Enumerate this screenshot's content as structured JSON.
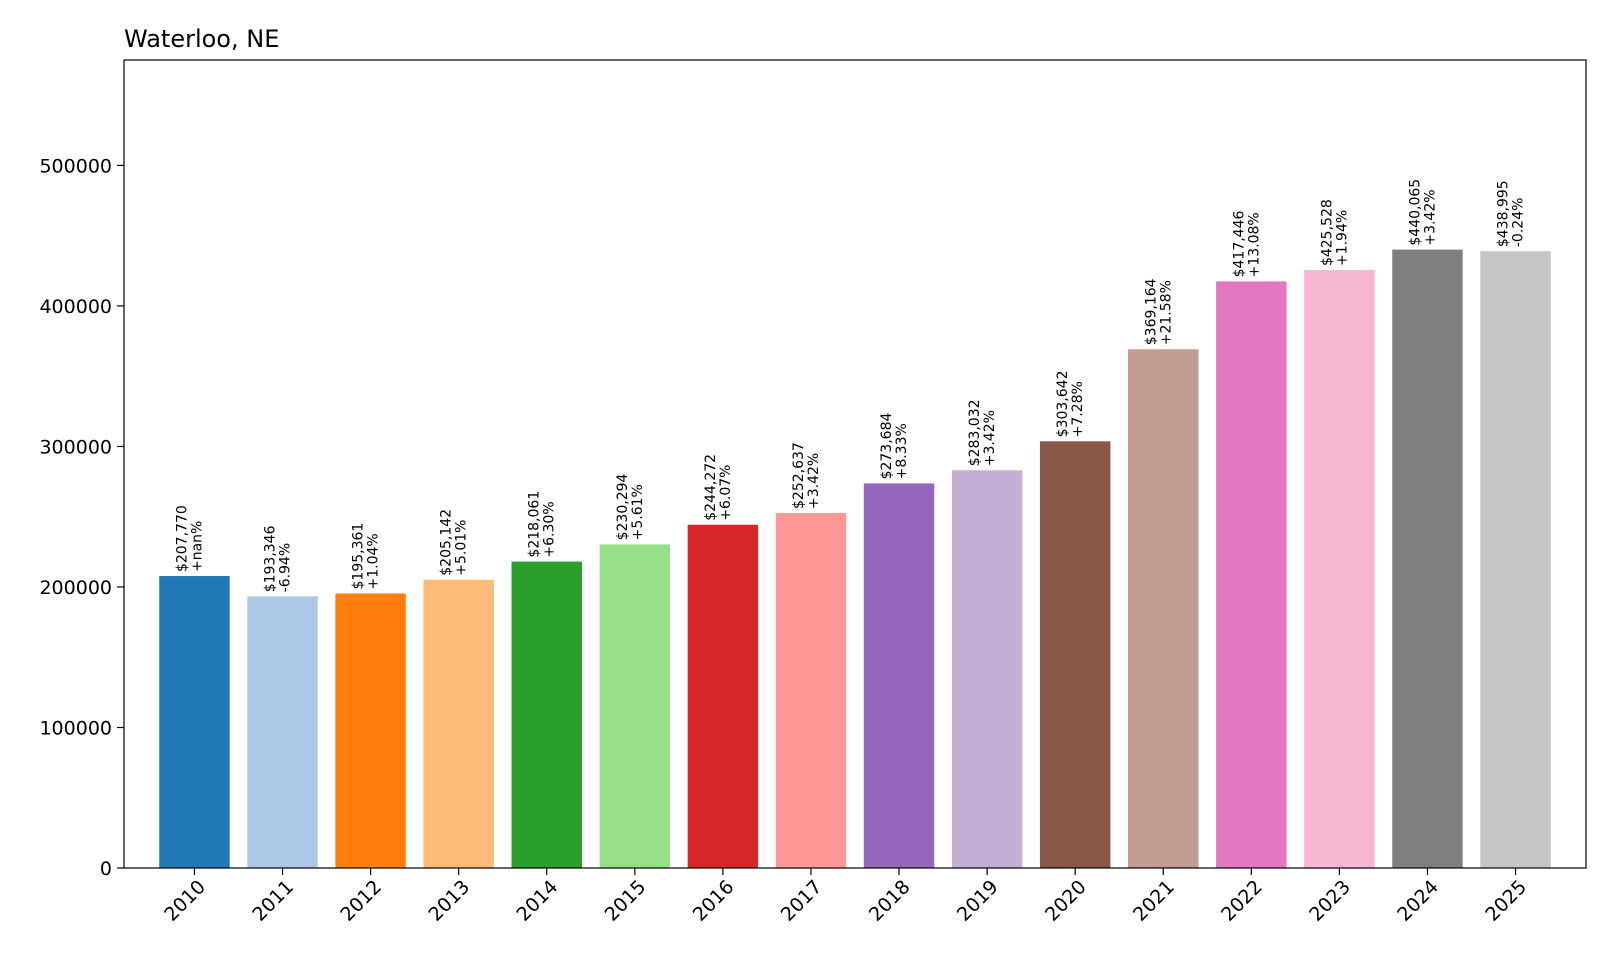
{
  "chart_data": {
    "type": "bar",
    "title": "Waterloo, NE",
    "xlabel": "",
    "ylabel": "",
    "ylim": [
      0,
      575000
    ],
    "yticks": [
      0,
      100000,
      200000,
      300000,
      400000,
      500000
    ],
    "ytick_labels": [
      "0",
      "100000",
      "200000",
      "300000",
      "400000",
      "500000"
    ],
    "grid": false,
    "categories": [
      "2010",
      "2011",
      "2012",
      "2013",
      "2014",
      "2015",
      "2016",
      "2017",
      "2018",
      "2019",
      "2020",
      "2021",
      "2022",
      "2023",
      "2024",
      "2025"
    ],
    "values": [
      207770,
      193346,
      195361,
      205142,
      218061,
      230294,
      244272,
      252637,
      273684,
      283032,
      303642,
      369164,
      417446,
      425528,
      440065,
      438995
    ],
    "value_labels": [
      "$207,770",
      "$193,346",
      "$195,361",
      "$205,142",
      "$218,061",
      "$230,294",
      "$244,272",
      "$252,637",
      "$273,684",
      "$283,032",
      "$303,642",
      "$369,164",
      "$417,446",
      "$425,528",
      "$440,065",
      "$438,995"
    ],
    "change_labels": [
      "+nan%",
      "-6.94%",
      "+1.04%",
      "+5.01%",
      "+6.30%",
      "+5.61%",
      "+6.07%",
      "+3.42%",
      "+8.33%",
      "+3.42%",
      "+7.28%",
      "+21.58%",
      "+13.08%",
      "+1.94%",
      "+3.42%",
      "-0.24%"
    ],
    "colors": [
      "#1f77b4",
      "#aec7e8",
      "#ff7f0e",
      "#ffbb78",
      "#2ca02c",
      "#98df8a",
      "#d62728",
      "#ff9896",
      "#9467bd",
      "#c5b0d5",
      "#8c564b",
      "#c49c94",
      "#e377c2",
      "#f7b6d2",
      "#7f7f7f",
      "#c7c7c7"
    ]
  }
}
